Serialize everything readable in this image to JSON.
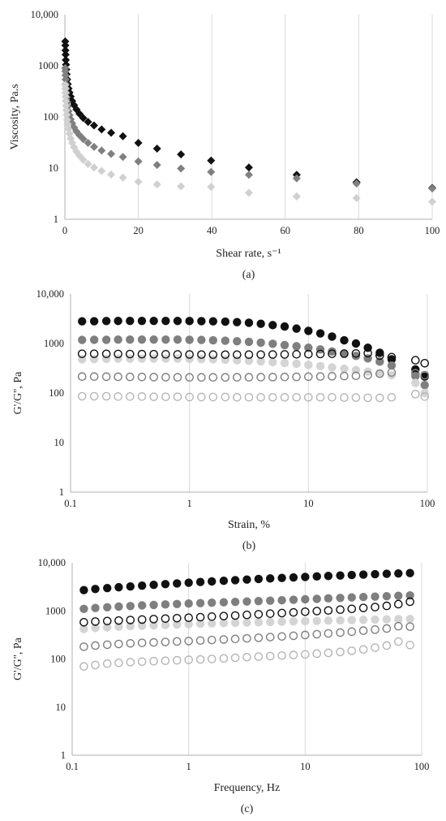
{
  "chart_data": [
    {
      "id": "a",
      "panel_label": "(a)",
      "type": "scatter",
      "xlabel": "Shear rate, s⁻¹",
      "ylabel": "Viscosity, Pa.s",
      "xscale": "linear",
      "yscale": "log",
      "xlim": [
        0,
        100
      ],
      "ylim": [
        1,
        10000
      ],
      "xticks": [
        "0",
        "20",
        "40",
        "60",
        "80",
        "100"
      ],
      "yticks": [
        "1",
        "10",
        "100",
        "1000",
        "10,000"
      ],
      "grid": "vertical",
      "marker": "diamond",
      "series": [
        {
          "color": "#111111",
          "x": [
            0.1,
            0.13,
            0.16,
            0.2,
            0.25,
            0.32,
            0.4,
            0.5,
            0.63,
            0.79,
            1,
            1.26,
            1.58,
            2,
            2.51,
            3.16,
            3.98,
            5.01,
            6.31,
            7.94,
            10,
            12.6,
            15.8,
            20,
            25.1,
            31.6,
            39.8,
            50.1,
            63.1,
            79.4,
            100
          ],
          "y": [
            3000,
            2500,
            2000,
            1650,
            1300,
            1050,
            850,
            680,
            540,
            440,
            360,
            300,
            250,
            205,
            170,
            140,
            115,
            95,
            80,
            68,
            57,
            49,
            42,
            31,
            24,
            18.5,
            14,
            10.3,
            7.4,
            5.3,
            4.1
          ]
        },
        {
          "color": "#808080",
          "x": [
            0.1,
            0.13,
            0.16,
            0.2,
            0.25,
            0.32,
            0.4,
            0.5,
            0.63,
            0.79,
            1,
            1.26,
            1.58,
            2,
            2.51,
            3.16,
            3.98,
            5.01,
            6.31,
            7.94,
            10,
            12.6,
            15.8,
            20,
            25.1,
            31.6,
            39.8,
            50.1,
            63.1,
            79.4,
            100
          ],
          "y": [
            900,
            780,
            650,
            540,
            440,
            360,
            295,
            240,
            195,
            160,
            130,
            108,
            90,
            75,
            62,
            52,
            44,
            37,
            31,
            26,
            22,
            19,
            16.5,
            13.5,
            11.5,
            9.8,
            8.4,
            7.4,
            6.3,
            5.0,
            4.0
          ]
        },
        {
          "color": "#d0d0d0",
          "x": [
            0.1,
            0.13,
            0.16,
            0.2,
            0.25,
            0.32,
            0.4,
            0.5,
            0.63,
            0.79,
            1,
            1.26,
            1.58,
            2,
            2.51,
            3.16,
            3.98,
            5.01,
            6.31,
            7.94,
            10,
            12.6,
            15.8,
            20,
            25.1,
            31.6,
            39.8,
            50.1,
            63.1,
            79.4,
            100
          ],
          "y": [
            420,
            360,
            300,
            250,
            205,
            165,
            135,
            110,
            88,
            72,
            58,
            47,
            38,
            31,
            25.5,
            21,
            17.5,
            14.5,
            12,
            10.3,
            8.8,
            7.5,
            6.5,
            5.4,
            4.8,
            4.4,
            4.3,
            3.3,
            2.8,
            2.6,
            2.2
          ]
        }
      ]
    },
    {
      "id": "b",
      "panel_label": "(b)",
      "type": "scatter",
      "xlabel": "Strain, %",
      "ylabel": "G'/G'', Pa",
      "xscale": "log",
      "yscale": "log",
      "xlim": [
        0.1,
        100
      ],
      "ylim": [
        1,
        10000
      ],
      "xticks": [
        "0.1",
        "1",
        "10",
        "100"
      ],
      "yticks": [
        "1",
        "10",
        "100",
        "1000",
        "10,000"
      ],
      "grid": "vertical",
      "marker": "circle",
      "x": [
        0.125,
        0.158,
        0.2,
        0.251,
        0.316,
        0.398,
        0.501,
        0.631,
        0.794,
        1,
        1.26,
        1.58,
        2,
        2.51,
        3.16,
        3.98,
        5.01,
        6.31,
        7.94,
        10,
        12.6,
        15.8,
        20,
        25.1,
        31.6,
        39.8,
        50.1,
        79.4,
        95
      ],
      "series": [
        {
          "color": "#111111",
          "filled": true,
          "y": [
            2800,
            2820,
            2840,
            2850,
            2860,
            2860,
            2860,
            2860,
            2850,
            2840,
            2830,
            2800,
            2760,
            2700,
            2620,
            2500,
            2350,
            2200,
            2000,
            1800,
            1600,
            1380,
            1160,
            1000,
            820,
            650,
            480,
            300,
            215
          ]
        },
        {
          "color": "#7f7f7f",
          "filled": true,
          "y": [
            1180,
            1190,
            1190,
            1200,
            1200,
            1200,
            1200,
            1200,
            1200,
            1190,
            1180,
            1160,
            1140,
            1110,
            1080,
            1040,
            990,
            930,
            880,
            820,
            760,
            690,
            620,
            560,
            500,
            430,
            360,
            220,
            145
          ]
        },
        {
          "color": "#d4d4d4",
          "filled": true,
          "y": [
            480,
            485,
            490,
            495,
            495,
            495,
            495,
            495,
            495,
            490,
            485,
            480,
            470,
            460,
            450,
            435,
            420,
            405,
            390,
            370,
            350,
            330,
            310,
            290,
            270,
            250,
            230,
            160,
            100
          ]
        },
        {
          "color": "#111111",
          "filled": false,
          "y": [
            620,
            620,
            618,
            615,
            612,
            610,
            608,
            605,
            602,
            600,
            598,
            596,
            595,
            595,
            596,
            598,
            600,
            602,
            605,
            610,
            615,
            620,
            625,
            630,
            640,
            570,
            530,
            460,
            400
          ]
        },
        {
          "color": "#7f7f7f",
          "filled": false,
          "y": [
            215,
            215,
            214,
            213,
            212,
            211,
            210,
            209,
            208,
            207,
            207,
            207,
            207,
            208,
            208,
            209,
            210,
            211,
            212,
            214,
            216,
            218,
            220,
            223,
            230,
            245,
            260,
            250,
            230
          ]
        },
        {
          "color": "#b5b5b5",
          "filled": false,
          "y": [
            86,
            86,
            86,
            85,
            85,
            85,
            84,
            84,
            84,
            83,
            83,
            83,
            83,
            82,
            82,
            82,
            82,
            82,
            82,
            82,
            82,
            82,
            81,
            81,
            80,
            80,
            82,
            95,
            85
          ]
        }
      ]
    },
    {
      "id": "c",
      "panel_label": "(c)",
      "type": "scatter",
      "xlabel": "Frequency, Hz",
      "ylabel": "G'/G'', Pa",
      "xscale": "log",
      "yscale": "log",
      "xlim": [
        0.1,
        100
      ],
      "ylim": [
        1,
        10000
      ],
      "xticks": [
        "0.1",
        "1",
        "10",
        "100"
      ],
      "yticks": [
        "1",
        "10",
        "100",
        "1000",
        "10,000"
      ],
      "grid": "vertical",
      "marker": "circle",
      "x": [
        0.126,
        0.158,
        0.2,
        0.251,
        0.316,
        0.398,
        0.501,
        0.631,
        0.794,
        1,
        1.26,
        1.58,
        2,
        2.51,
        3.16,
        3.98,
        5.01,
        6.31,
        7.94,
        10,
        12.6,
        15.8,
        20,
        25.1,
        31.6,
        39.8,
        50.1,
        63.1,
        79.4
      ],
      "series": [
        {
          "color": "#111111",
          "filled": true,
          "y": [
            2700,
            2850,
            2980,
            3100,
            3220,
            3350,
            3480,
            3600,
            3720,
            3850,
            3980,
            4100,
            4220,
            4350,
            4480,
            4600,
            4720,
            4840,
            4960,
            5080,
            5200,
            5320,
            5440,
            5560,
            5680,
            5800,
            5900,
            6000,
            6100
          ]
        },
        {
          "color": "#7f7f7f",
          "filled": true,
          "y": [
            1100,
            1150,
            1190,
            1230,
            1260,
            1300,
            1330,
            1360,
            1390,
            1420,
            1450,
            1480,
            1510,
            1540,
            1570,
            1600,
            1630,
            1660,
            1700,
            1740,
            1780,
            1820,
            1860,
            1900,
            1940,
            1980,
            2020,
            2060,
            2100
          ]
        },
        {
          "color": "#d4d4d4",
          "filled": true,
          "y": [
            420,
            440,
            455,
            470,
            480,
            490,
            500,
            510,
            520,
            530,
            540,
            548,
            556,
            564,
            572,
            580,
            588,
            596,
            604,
            612,
            620,
            628,
            636,
            644,
            652,
            660,
            668,
            676,
            680
          ]
        },
        {
          "color": "#111111",
          "filled": false,
          "y": [
            580,
            600,
            615,
            630,
            645,
            660,
            675,
            690,
            705,
            720,
            740,
            760,
            780,
            800,
            825,
            850,
            875,
            900,
            930,
            960,
            990,
            1020,
            1060,
            1100,
            1150,
            1200,
            1270,
            1380,
            1550
          ]
        },
        {
          "color": "#7f7f7f",
          "filled": false,
          "y": [
            180,
            190,
            198,
            205,
            211,
            216,
            221,
            226,
            231,
            236,
            242,
            248,
            254,
            261,
            268,
            276,
            285,
            294,
            304,
            315,
            327,
            340,
            354,
            370,
            388,
            408,
            430,
            480,
            470
          ]
        },
        {
          "color": "#b5b5b5",
          "filled": false,
          "y": [
            70,
            75,
            80,
            83,
            86,
            88,
            90,
            92,
            94,
            96,
            98,
            100,
            103,
            106,
            109,
            112,
            115,
            118,
            121,
            125,
            129,
            134,
            140,
            148,
            158,
            172,
            190,
            230,
            195
          ]
        }
      ]
    }
  ]
}
